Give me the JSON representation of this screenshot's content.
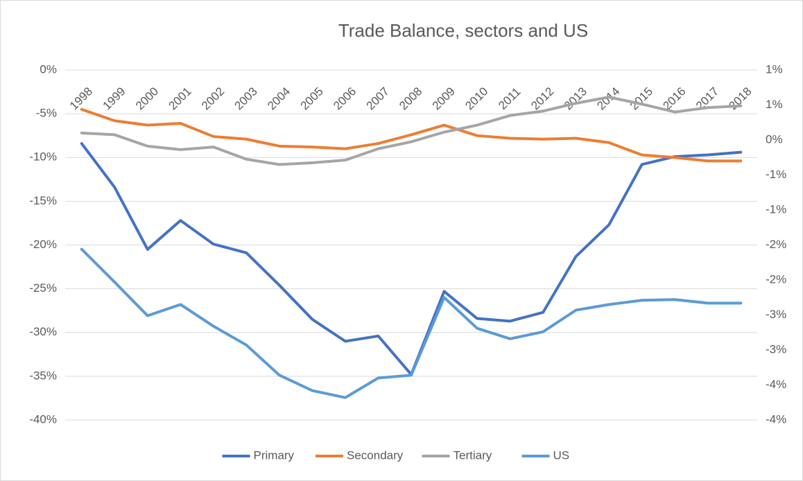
{
  "chart_data": {
    "type": "line",
    "title": "Trade Balance, sectors and US",
    "categories": [
      "1998",
      "1999",
      "2000",
      "2001",
      "2002",
      "2003",
      "2004",
      "2005",
      "2006",
      "2007",
      "2008",
      "2009",
      "2010",
      "2011",
      "2012",
      "2013",
      "2014",
      "2015",
      "2016",
      "2017",
      "2018"
    ],
    "series": [
      {
        "name": "Primary",
        "color": "#4472c4",
        "values": [
          -8.4,
          -13.4,
          -20.5,
          -17.2,
          -19.9,
          -20.9,
          -24.6,
          -28.5,
          -31.0,
          -30.4,
          -34.8,
          -25.3,
          -28.4,
          -28.7,
          -27.7,
          -21.3,
          -17.7,
          -10.8,
          -9.9,
          -9.7,
          -9.4
        ]
      },
      {
        "name": "Secondary",
        "color": "#ed7d31",
        "values": [
          -4.5,
          -5.8,
          -6.3,
          -6.1,
          -7.6,
          -7.9,
          -8.7,
          -8.8,
          -9.0,
          -8.4,
          -7.4,
          -6.3,
          -7.5,
          -7.8,
          -7.9,
          -7.8,
          -8.3,
          -9.7,
          -10.0,
          -10.4,
          -10.4
        ]
      },
      {
        "name": "Tertiary",
        "color": "#a5a5a5",
        "values": [
          -7.2,
          -7.4,
          -8.7,
          -9.1,
          -8.8,
          -10.2,
          -10.8,
          -10.6,
          -10.3,
          -9.0,
          -8.2,
          -7.1,
          -6.3,
          -5.2,
          -4.7,
          -3.8,
          -3.1,
          -3.9,
          -4.8,
          -4.3,
          -4.1
        ]
      },
      {
        "name": "US",
        "color": "#5b9bd5",
        "axis": "y2",
        "values": [
          -1.56,
          -2.03,
          -2.51,
          -2.35,
          -2.66,
          -2.93,
          -3.36,
          -3.58,
          -3.68,
          -3.4,
          -3.36,
          -2.25,
          -2.69,
          -2.84,
          -2.74,
          -2.43,
          -2.35,
          -2.29,
          -2.28,
          -2.33,
          -2.33
        ]
      }
    ],
    "ylim": [
      -40,
      0
    ],
    "yticks": [
      {
        "value": 0,
        "label": "0%"
      },
      {
        "value": -5,
        "label": "-5%"
      },
      {
        "value": -10,
        "label": "-10%"
      },
      {
        "value": -15,
        "label": "-15%"
      },
      {
        "value": -20,
        "label": "-20%"
      },
      {
        "value": -25,
        "label": "-25%"
      },
      {
        "value": -30,
        "label": "-30%"
      },
      {
        "value": -35,
        "label": "-35%"
      },
      {
        "value": -40,
        "label": "-40%"
      }
    ],
    "y2lim": [
      -4,
      1
    ],
    "y2ticks": [
      {
        "value": 1,
        "label": "1%"
      },
      {
        "value": 0.5,
        "label": "1%"
      },
      {
        "value": 0,
        "label": "0%"
      },
      {
        "value": -0.5,
        "label": "-1%"
      },
      {
        "value": -1,
        "label": "-1%"
      },
      {
        "value": -1.5,
        "label": "-2%"
      },
      {
        "value": -2,
        "label": "-2%"
      },
      {
        "value": -2.5,
        "label": "-3%"
      },
      {
        "value": -3,
        "label": "-3%"
      },
      {
        "value": -3.5,
        "label": "-4%"
      },
      {
        "value": -4,
        "label": "-4%"
      }
    ],
    "grid": true,
    "legend": "bottom"
  }
}
